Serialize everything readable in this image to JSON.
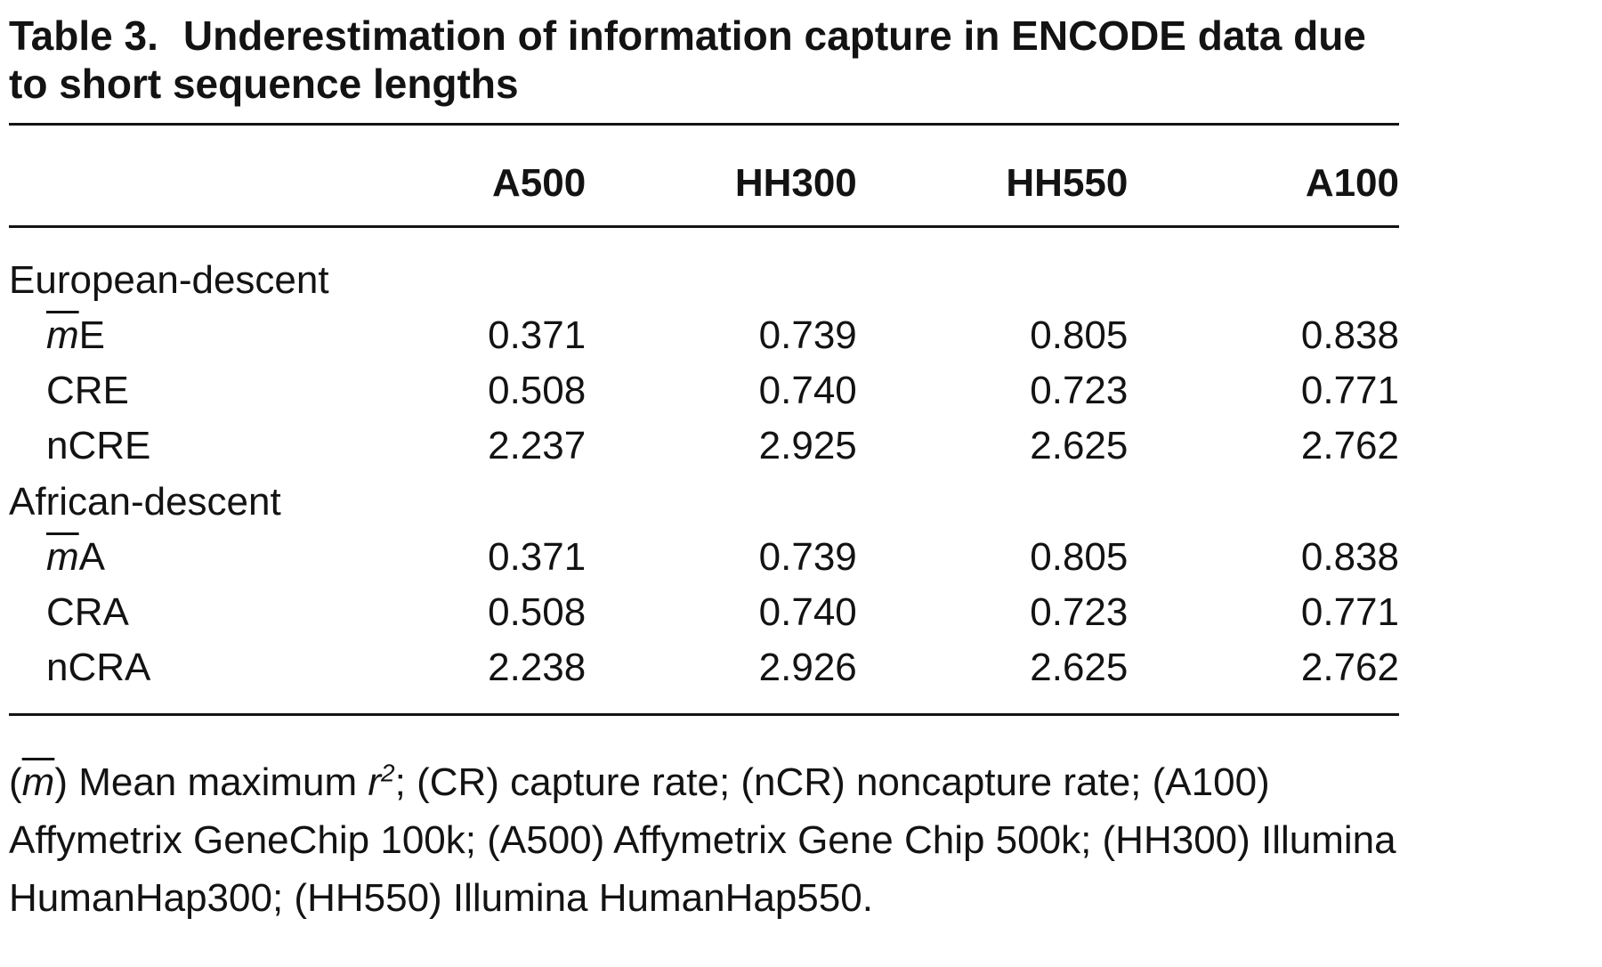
{
  "table": {
    "label": "Table 3.",
    "title": "Underestimation of information capture in ENCODE data due to short sequence lengths",
    "columns": [
      "A500",
      "HH300",
      "HH550",
      "A100"
    ],
    "groups": [
      {
        "name": "European-descent",
        "rows": [
          {
            "mark": "m",
            "rest": "E",
            "values": [
              "0.371",
              "0.739",
              "0.805",
              "0.838"
            ]
          },
          {
            "mark": "",
            "rest": "CRE",
            "values": [
              "0.508",
              "0.740",
              "0.723",
              "0.771"
            ]
          },
          {
            "mark": "",
            "rest": "nCRE",
            "values": [
              "2.237",
              "2.925",
              "2.625",
              "2.762"
            ]
          }
        ]
      },
      {
        "name": "African-descent",
        "rows": [
          {
            "mark": "m",
            "rest": "A",
            "values": [
              "0.371",
              "0.739",
              "0.805",
              "0.838"
            ]
          },
          {
            "mark": "",
            "rest": "CRA",
            "values": [
              "0.508",
              "0.740",
              "0.723",
              "0.771"
            ]
          },
          {
            "mark": "",
            "rest": "nCRA",
            "values": [
              "2.238",
              "2.926",
              "2.625",
              "2.762"
            ]
          }
        ]
      }
    ],
    "footnote": {
      "open_paren": "(",
      "m_symbol": "m",
      "after_m": ") Mean maximum ",
      "r_symbol": "r",
      "r_sup": "2",
      "rest": "; (CR) capture rate; (nCR) noncapture rate; (A100) Affymetrix GeneChip 100k; (A500) Affymetrix Gene Chip 500k; (HH300) Illumina HumanHap300; (HH550) Illumina HumanHap550."
    }
  }
}
